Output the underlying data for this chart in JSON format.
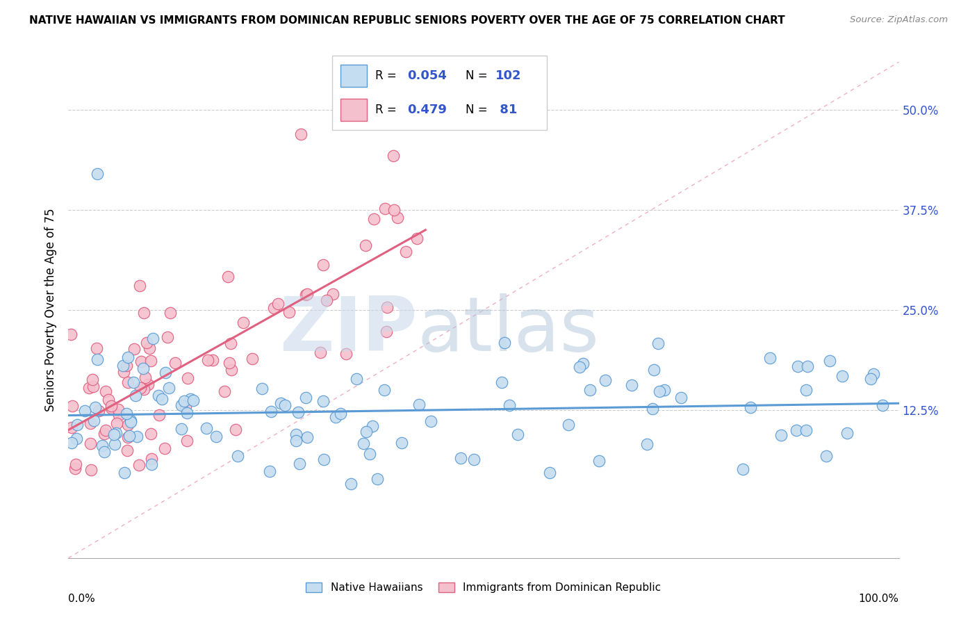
{
  "title": "NATIVE HAWAIIAN VS IMMIGRANTS FROM DOMINICAN REPUBLIC SENIORS POVERTY OVER THE AGE OF 75 CORRELATION CHART",
  "source": "Source: ZipAtlas.com",
  "ylabel": "Seniors Poverty Over the Age of 75",
  "blue_color": "#5b9bd5",
  "pink_color": "#e06080",
  "blue_dot_fill": "#c5ddf0",
  "pink_dot_fill": "#f5c0ce",
  "blue_R": "0.054",
  "blue_N": "102",
  "pink_R": "0.479",
  "pink_N": "81",
  "axis_label_color": "#3355cc",
  "watermark_zip_color": "#c8d8e8",
  "watermark_atlas_color": "#a0b8d0",
  "ytick_vals": [
    0.0,
    0.125,
    0.25,
    0.375,
    0.5
  ],
  "ytick_labels": [
    "",
    "12.5%",
    "25.0%",
    "37.5%",
    "50.0%"
  ],
  "xmin": 0.0,
  "xmax": 1.0,
  "ymin": -0.06,
  "ymax": 0.56
}
